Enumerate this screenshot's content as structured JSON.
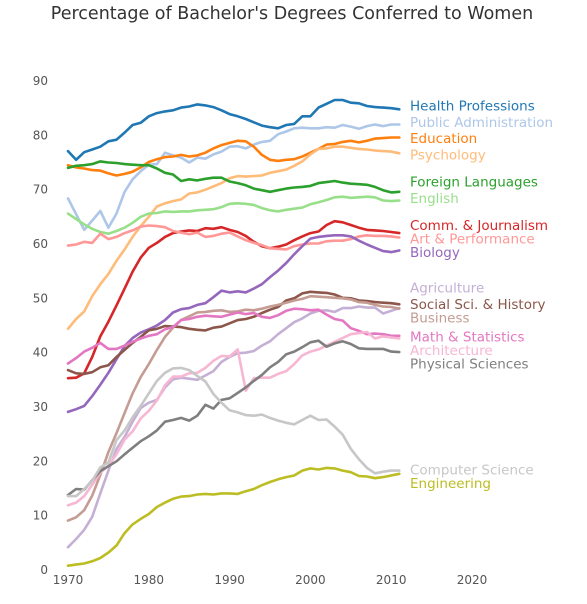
{
  "chart_data": {
    "type": "line",
    "title": "Percentage of Bachelor's Degrees Conferred to Women",
    "xlabel": "",
    "ylabel": "",
    "xlim": [
      1970,
      2030
    ],
    "ylim": [
      0,
      90
    ],
    "x_ticks": [
      1970,
      1980,
      1990,
      2000,
      2010,
      2020
    ],
    "y_ticks": [
      0,
      10,
      20,
      30,
      40,
      50,
      60,
      70,
      80,
      90
    ],
    "grid": false,
    "legend": "inline labels at line ends",
    "x": [
      1970,
      1971,
      1972,
      1973,
      1974,
      1975,
      1976,
      1977,
      1978,
      1979,
      1980,
      1981,
      1982,
      1983,
      1984,
      1985,
      1986,
      1987,
      1988,
      1989,
      1990,
      1991,
      1992,
      1993,
      1994,
      1995,
      1996,
      1997,
      1998,
      1999,
      2000,
      2001,
      2002,
      2003,
      2004,
      2005,
      2006,
      2007,
      2008,
      2009,
      2010,
      2011
    ],
    "series": [
      {
        "name": "Health Professions",
        "color": "#1f77b4",
        "label_y": 85.5,
        "values": [
          77.1,
          75.5,
          76.9,
          77.4,
          77.9,
          78.9,
          79.2,
          80.5,
          81.9,
          82.3,
          83.5,
          84.1,
          84.4,
          84.6,
          85.1,
          85.3,
          85.7,
          85.5,
          85.2,
          84.6,
          83.9,
          83.5,
          83.0,
          82.4,
          81.8,
          81.5,
          81.3,
          81.9,
          82.1,
          83.5,
          83.5,
          85.1,
          85.8,
          86.5,
          86.5,
          86.0,
          85.9,
          85.4,
          85.2,
          85.1,
          85.0,
          84.8
        ]
      },
      {
        "name": "Public Administration",
        "color": "#aec7e8",
        "label_y": 82.5,
        "values": [
          68.4,
          65.5,
          62.6,
          64.3,
          66.1,
          63.0,
          65.6,
          69.6,
          71.9,
          73.4,
          74.6,
          74.7,
          76.8,
          76.3,
          75.9,
          75.0,
          75.9,
          75.7,
          76.5,
          77.0,
          77.9,
          78.0,
          77.6,
          78.3,
          78.8,
          79.0,
          80.2,
          80.7,
          81.3,
          81.4,
          81.3,
          81.3,
          81.5,
          81.4,
          81.9,
          81.6,
          81.2,
          81.7,
          82.0,
          81.7,
          82.0,
          82.0
        ]
      },
      {
        "name": "Education",
        "color": "#ff7f0e",
        "label_y": 79.5,
        "values": [
          74.5,
          74.1,
          73.9,
          73.6,
          73.5,
          73.0,
          72.6,
          72.9,
          73.3,
          74.1,
          75.1,
          75.6,
          76.0,
          76.1,
          76.4,
          76.1,
          76.3,
          76.8,
          77.6,
          78.2,
          78.6,
          79.0,
          78.9,
          77.9,
          76.4,
          75.5,
          75.3,
          75.5,
          75.6,
          76.1,
          76.8,
          77.5,
          78.3,
          78.4,
          78.8,
          79.0,
          78.7,
          79.0,
          79.4,
          79.5,
          79.6,
          79.6
        ]
      },
      {
        "name": "Psychology",
        "color": "#ffbb78",
        "label_y": 76.5,
        "values": [
          44.4,
          46.2,
          47.6,
          50.4,
          52.6,
          54.5,
          56.9,
          59.0,
          61.3,
          63.3,
          65.0,
          66.9,
          67.5,
          67.9,
          68.2,
          69.3,
          69.5,
          70.0,
          70.6,
          71.2,
          72.1,
          72.5,
          72.4,
          72.5,
          72.6,
          73.1,
          73.4,
          73.7,
          74.4,
          75.2,
          76.5,
          77.5,
          77.6,
          77.9,
          77.9,
          77.7,
          77.5,
          77.4,
          77.2,
          77.1,
          77.0,
          76.7
        ]
      },
      {
        "name": "Foreign Languages",
        "color": "#2ca02c",
        "label_y": 71.5,
        "values": [
          74.0,
          74.4,
          74.5,
          74.7,
          75.2,
          75.0,
          74.9,
          74.7,
          74.6,
          74.5,
          74.5,
          73.9,
          73.1,
          72.8,
          71.6,
          71.9,
          71.7,
          72.0,
          72.2,
          72.2,
          71.5,
          71.2,
          70.8,
          70.2,
          69.9,
          69.6,
          69.9,
          70.2,
          70.4,
          70.5,
          70.7,
          71.2,
          71.4,
          71.6,
          71.3,
          71.1,
          71.0,
          70.9,
          70.5,
          69.9,
          69.5,
          69.6
        ]
      },
      {
        "name": "English",
        "color": "#98df8a",
        "label_y": 68.5,
        "values": [
          65.6,
          64.6,
          63.6,
          62.8,
          62.2,
          61.9,
          62.4,
          63.0,
          63.9,
          65.0,
          65.6,
          65.7,
          66.0,
          65.9,
          66.0,
          66.0,
          66.2,
          66.3,
          66.4,
          66.8,
          67.4,
          67.5,
          67.4,
          67.2,
          66.6,
          66.2,
          66.0,
          66.3,
          66.5,
          66.7,
          67.3,
          67.7,
          68.1,
          68.6,
          68.7,
          68.5,
          68.6,
          68.7,
          68.6,
          68.0,
          67.9,
          68.0
        ]
      },
      {
        "name": "Comm. & Journalism",
        "color": "#d62728",
        "label_y": 63.5,
        "values": [
          35.3,
          35.4,
          36.2,
          39.2,
          43.0,
          45.7,
          48.7,
          51.8,
          54.9,
          57.5,
          59.3,
          60.2,
          61.3,
          62.0,
          62.3,
          62.5,
          62.4,
          62.9,
          62.8,
          63.1,
          62.6,
          62.2,
          61.5,
          60.4,
          59.6,
          59.2,
          59.5,
          59.9,
          60.7,
          61.4,
          62.0,
          62.3,
          63.5,
          64.2,
          64.0,
          63.5,
          63.0,
          62.6,
          62.5,
          62.4,
          62.2,
          62.0
        ]
      },
      {
        "name": "Art & Performance",
        "color": "#ff9896",
        "label_y": 61.0,
        "values": [
          59.7,
          59.9,
          60.4,
          60.2,
          61.9,
          60.9,
          61.3,
          62.0,
          62.5,
          63.2,
          63.4,
          63.3,
          63.1,
          62.4,
          62.1,
          61.8,
          62.1,
          61.3,
          61.5,
          61.9,
          62.1,
          61.4,
          60.7,
          60.2,
          59.8,
          59.2,
          59.1,
          59.0,
          59.6,
          59.9,
          60.1,
          60.1,
          60.5,
          60.6,
          60.6,
          60.9,
          61.4,
          61.6,
          61.5,
          61.5,
          61.4,
          61.2
        ]
      },
      {
        "name": "Biology",
        "color": "#9467bd",
        "label_y": 58.5,
        "values": [
          29.1,
          29.6,
          30.2,
          32.0,
          34.1,
          36.3,
          38.8,
          41.2,
          42.7,
          43.7,
          44.3,
          45.0,
          46.0,
          47.4,
          48.0,
          48.2,
          48.8,
          49.1,
          50.2,
          51.4,
          51.1,
          51.3,
          51.1,
          51.8,
          52.6,
          53.9,
          55.1,
          56.5,
          58.1,
          59.6,
          61.0,
          61.3,
          61.5,
          61.6,
          61.6,
          61.4,
          60.6,
          59.9,
          59.3,
          58.7,
          58.5,
          58.8
        ]
      },
      {
        "name": "Agriculture",
        "color": "#c5b0d5",
        "label_y": 52.0,
        "values": [
          4.2,
          5.7,
          7.4,
          9.8,
          14.1,
          18.3,
          22.3,
          24.5,
          27.3,
          29.8,
          30.8,
          31.3,
          33.6,
          35.1,
          35.4,
          35.2,
          35.0,
          35.8,
          36.6,
          38.3,
          39.2,
          39.9,
          40.0,
          40.3,
          41.3,
          42.1,
          43.4,
          44.5,
          45.6,
          46.3,
          47.2,
          47.7,
          47.8,
          47.5,
          48.2,
          48.2,
          48.5,
          48.3,
          48.3,
          47.2,
          47.7,
          48.2
        ]
      },
      {
        "name": "Social Sci. & History",
        "color": "#8c564b",
        "label_y": 49.0,
        "values": [
          36.8,
          36.2,
          36.1,
          36.4,
          37.3,
          37.7,
          39.2,
          40.5,
          41.8,
          42.9,
          44.1,
          44.4,
          44.9,
          44.8,
          44.7,
          44.4,
          44.2,
          44.1,
          44.6,
          44.8,
          45.4,
          46.0,
          46.2,
          46.6,
          47.3,
          47.9,
          48.4,
          49.6,
          50.0,
          50.9,
          51.2,
          51.1,
          51.0,
          50.7,
          50.1,
          50.0,
          49.6,
          49.5,
          49.3,
          49.2,
          49.1,
          48.9
        ]
      },
      {
        "name": "Business",
        "color": "#c49c94",
        "label_y": 46.5,
        "values": [
          9.1,
          9.7,
          11.0,
          13.7,
          17.5,
          21.7,
          25.2,
          28.9,
          32.5,
          35.5,
          37.9,
          40.5,
          42.9,
          44.6,
          46.0,
          46.7,
          47.4,
          47.5,
          47.7,
          47.8,
          47.5,
          47.6,
          47.9,
          47.8,
          48.1,
          48.5,
          48.8,
          49.2,
          49.6,
          49.9,
          50.4,
          50.3,
          50.2,
          50.1,
          50.0,
          49.8,
          49.3,
          49.2,
          48.8,
          48.5,
          48.4,
          48.1
        ]
      },
      {
        "name": "Math & Statistics",
        "color": "#e377c2",
        "label_y": 43.0,
        "values": [
          38.0,
          39.0,
          40.2,
          40.9,
          41.8,
          40.7,
          40.7,
          41.3,
          42.0,
          42.6,
          43.1,
          43.4,
          44.3,
          44.7,
          46.0,
          46.2,
          46.6,
          46.8,
          46.7,
          46.6,
          47.0,
          47.4,
          47.1,
          47.3,
          46.6,
          46.4,
          46.9,
          47.7,
          48.1,
          48.0,
          47.8,
          47.9,
          47.0,
          46.2,
          45.9,
          44.5,
          44.0,
          43.4,
          43.5,
          43.4,
          43.1,
          43.1
        ]
      },
      {
        "name": "Architecture",
        "color": "#f7b6d2",
        "label_y": 40.5,
        "values": [
          11.9,
          12.4,
          13.6,
          15.7,
          17.9,
          19.2,
          21.3,
          24.0,
          25.5,
          27.9,
          29.3,
          31.2,
          34.0,
          35.6,
          35.6,
          36.2,
          36.3,
          37.2,
          38.5,
          39.4,
          39.3,
          40.6,
          33.0,
          35.3,
          35.4,
          35.4,
          36.1,
          36.6,
          37.9,
          39.5,
          40.2,
          40.6,
          41.3,
          42.0,
          42.7,
          43.4,
          43.6,
          43.8,
          42.6,
          43.0,
          42.8,
          42.6
        ]
      },
      {
        "name": "Physical Sciences",
        "color": "#7f7f7f",
        "label_y": 38.0,
        "values": [
          13.8,
          14.9,
          14.8,
          16.5,
          18.2,
          19.1,
          20.0,
          21.3,
          22.5,
          23.7,
          24.6,
          25.7,
          27.3,
          27.6,
          28.0,
          27.5,
          28.4,
          30.4,
          29.7,
          31.3,
          31.6,
          32.6,
          33.6,
          34.8,
          35.9,
          37.3,
          38.3,
          39.7,
          40.2,
          41.0,
          41.9,
          42.2,
          41.1,
          41.7,
          42.1,
          41.6,
          40.8,
          40.7,
          40.7,
          40.7,
          40.2,
          40.1
        ]
      },
      {
        "name": "Computer Science",
        "color": "#c7c7c7",
        "label_y": 18.5,
        "values": [
          13.6,
          13.6,
          14.9,
          16.4,
          18.9,
          19.8,
          23.9,
          25.7,
          28.1,
          30.2,
          32.5,
          34.8,
          36.3,
          37.1,
          37.2,
          36.8,
          35.7,
          34.7,
          32.4,
          30.8,
          29.4,
          29.0,
          28.5,
          28.4,
          28.6,
          28.0,
          27.5,
          27.1,
          26.8,
          27.6,
          28.4,
          27.6,
          27.7,
          26.4,
          24.9,
          22.3,
          20.4,
          18.8,
          17.8,
          18.1,
          18.3,
          18.3
        ]
      },
      {
        "name": "Engineering",
        "color": "#bcbd22",
        "label_y": 16.0,
        "values": [
          0.8,
          1.0,
          1.2,
          1.6,
          2.2,
          3.2,
          4.5,
          6.8,
          8.4,
          9.4,
          10.3,
          11.6,
          12.4,
          13.1,
          13.5,
          13.6,
          13.9,
          14.0,
          13.9,
          14.1,
          14.1,
          14.0,
          14.5,
          14.9,
          15.6,
          16.2,
          16.7,
          17.1,
          17.4,
          18.3,
          18.7,
          18.5,
          18.8,
          18.7,
          18.3,
          18.0,
          17.3,
          17.2,
          16.9,
          17.1,
          17.4,
          17.7
        ]
      }
    ]
  }
}
